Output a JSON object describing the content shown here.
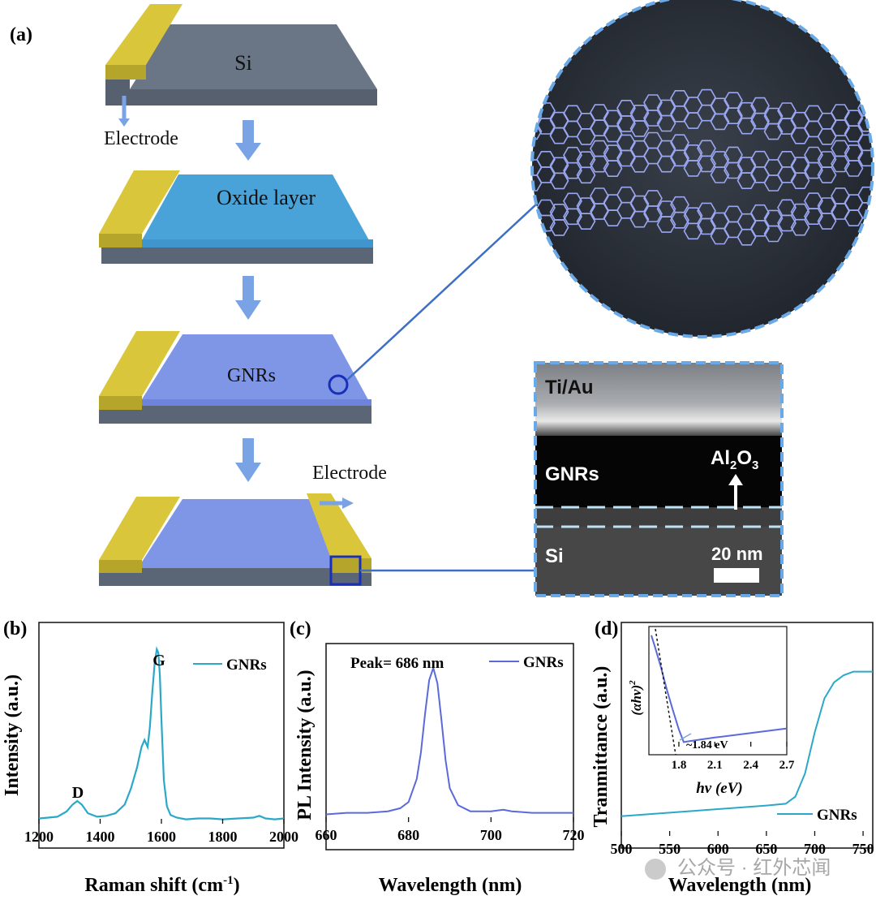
{
  "panel_a": {
    "label": "(a)",
    "stages": [
      {
        "label": "Si"
      },
      {
        "label": "Oxide layer"
      },
      {
        "label": "GNRs"
      },
      {
        "label": ""
      }
    ],
    "electrode_label_1": "Electrode",
    "electrode_label_2": "Electrode",
    "sem": {
      "top_label": "Ti/Au",
      "mid_label": "GNRs",
      "oxide_label": "Al",
      "oxide_sub1": "2",
      "oxide_mid": "O",
      "oxide_sub2": "3",
      "bottom_label": "Si",
      "scale_label": "20 nm"
    },
    "colors": {
      "electrode": "#d9c63a",
      "si": "#6f7c8c",
      "oxide": "#4aa3d8",
      "gnr": "#7f95e6",
      "accent": "#3d6fc6"
    }
  },
  "panel_b": {
    "label": "(b)",
    "peak_labels": [
      "D",
      "G"
    ],
    "chart_data": {
      "type": "line",
      "xlabel": "Raman shift (cm",
      "xlabel_sup": "-1",
      "xlabel_end": ")",
      "ylabel": "Intensity (a.u.)",
      "xlim": [
        1200,
        2000
      ],
      "ylim": [
        0,
        1
      ],
      "x_ticks": [
        "1200",
        "1400",
        "1600",
        "1800",
        "2000"
      ],
      "legend": "GNRs",
      "color": "#2ba8c8",
      "series": [
        {
          "name": "GNRs",
          "x": [
            1200,
            1230,
            1260,
            1290,
            1310,
            1325,
            1340,
            1360,
            1390,
            1420,
            1450,
            1480,
            1500,
            1520,
            1535,
            1545,
            1550,
            1555,
            1562,
            1570,
            1578,
            1585,
            1590,
            1595,
            1600,
            1608,
            1618,
            1630,
            1650,
            1680,
            1720,
            1760,
            1800,
            1850,
            1900,
            1920,
            1940,
            1970,
            2000
          ],
          "values": [
            0.03,
            0.035,
            0.04,
            0.07,
            0.11,
            0.13,
            0.11,
            0.06,
            0.04,
            0.045,
            0.06,
            0.11,
            0.2,
            0.32,
            0.44,
            0.48,
            0.46,
            0.44,
            0.55,
            0.75,
            0.92,
            1.0,
            0.98,
            0.85,
            0.6,
            0.25,
            0.1,
            0.05,
            0.035,
            0.025,
            0.03,
            0.03,
            0.025,
            0.03,
            0.035,
            0.045,
            0.03,
            0.025,
            0.03
          ]
        }
      ]
    }
  },
  "panel_c": {
    "label": "(c)",
    "peak_label": "Peak= 686 nm",
    "chart_data": {
      "type": "line",
      "xlabel": "Wavelength (nm)",
      "ylabel": "PL Intensity (a.u.)",
      "xlim": [
        660,
        720
      ],
      "ylim": [
        0,
        1
      ],
      "x_ticks": [
        "660",
        "680",
        "700",
        "720"
      ],
      "legend": "GNRs",
      "color": "#5a6ad8",
      "series": [
        {
          "name": "GNRs",
          "x": [
            660,
            665,
            670,
            675,
            678,
            680,
            682,
            683,
            684,
            685,
            686,
            687,
            688,
            689,
            690,
            692,
            695,
            700,
            703,
            705,
            710,
            715,
            720
          ],
          "values": [
            0.05,
            0.06,
            0.06,
            0.07,
            0.09,
            0.13,
            0.28,
            0.45,
            0.7,
            0.92,
            1.0,
            0.9,
            0.66,
            0.4,
            0.22,
            0.11,
            0.07,
            0.07,
            0.08,
            0.07,
            0.06,
            0.06,
            0.06
          ]
        }
      ]
    }
  },
  "panel_d": {
    "label": "(d)",
    "chart_data": {
      "type": "line",
      "xlabel": "Wavelength (nm)",
      "ylabel": "Tranmittance (a.u.)",
      "xlim": [
        500,
        760
      ],
      "ylim": [
        0,
        1
      ],
      "x_ticks": [
        "500",
        "550",
        "600",
        "650",
        "700",
        "750"
      ],
      "legend": "GNRs",
      "color": "#2ba8c8",
      "series": [
        {
          "name": "GNRs",
          "x": [
            500,
            550,
            600,
            650,
            670,
            680,
            690,
            700,
            710,
            720,
            730,
            740,
            750,
            760
          ],
          "values": [
            0.11,
            0.13,
            0.15,
            0.17,
            0.18,
            0.22,
            0.35,
            0.58,
            0.77,
            0.86,
            0.9,
            0.92,
            0.92,
            0.92
          ]
        }
      ]
    },
    "inset": {
      "ylabel": "(αhν)",
      "ylabel_sup": "2",
      "xlabel": "hν (eV)",
      "x_ticks": [
        "1.8",
        "2.1",
        "2.4",
        "2.7"
      ],
      "annotation": "~1.84 eV",
      "chart_data": {
        "type": "line",
        "xlim": [
          1.55,
          2.7
        ],
        "ylim": [
          0,
          1
        ],
        "series": [
          {
            "name": "",
            "x": [
              1.57,
              1.6,
              1.65,
              1.7,
              1.75,
              1.8,
              1.84,
              1.9,
              2.1,
              2.4,
              2.7
            ],
            "values": [
              0.98,
              0.88,
              0.7,
              0.5,
              0.32,
              0.15,
              0.04,
              0.05,
              0.08,
              0.12,
              0.16
            ]
          }
        ]
      }
    }
  },
  "watermark": "公众号 · 红外芯闻"
}
